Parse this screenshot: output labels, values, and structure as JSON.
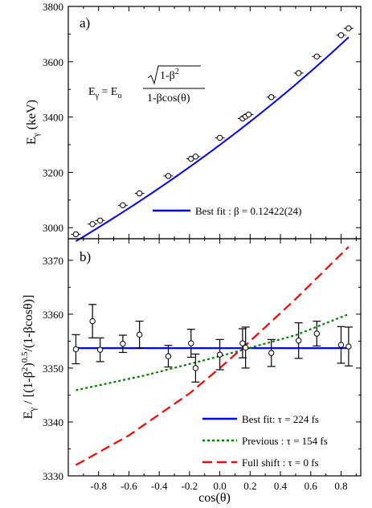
{
  "chart_data": [
    {
      "panel_label": "a)",
      "type": "scatter",
      "ylabel_main": "E",
      "ylabel_sub": "γ",
      "ylabel_rest": " (keV)",
      "ylim": [
        2960,
        3800
      ],
      "yticks": [
        3000,
        3200,
        3400,
        3600,
        3800
      ],
      "xlim": [
        -1.0,
        0.93
      ],
      "equation": {
        "lhs_main": "E",
        "lhs_sub": "γ",
        "rhs_main": " = E",
        "rhs_sub": "o",
        "numerator": "1-β",
        "numerator_sup": "2",
        "denominator": "1-βcos(θ)"
      },
      "fit": {
        "beta": 0.12422,
        "E0": 3325.0
      },
      "legend": [
        {
          "label": "Best fit : β = 0.12422(24)",
          "color": "#0000ff",
          "style": "solid"
        }
      ],
      "points_x": [
        -0.95,
        -0.84,
        -0.79,
        -0.64,
        -0.53,
        -0.34,
        -0.19,
        -0.16,
        0.0,
        0.15,
        0.17,
        0.19,
        0.34,
        0.52,
        0.64,
        0.8,
        0.85
      ],
      "points_y": [
        2976,
        3013,
        3026,
        3081,
        3124,
        3187,
        3249,
        3257,
        3325,
        3395,
        3402,
        3409,
        3472,
        3559,
        3619,
        3696,
        3721
      ]
    },
    {
      "panel_label": "b)",
      "type": "scatter",
      "xlabel": "cos(θ)",
      "ylabel_main": "E",
      "ylabel_sub": "γ",
      "ylabel_rest": " / [(1-β",
      "ylabel_sup": "2",
      "ylabel_sup2": ")",
      "ylabel_sup3": "0.5",
      "ylabel_tail": "/(1-βcosθ)]",
      "ylim": [
        3330,
        3374
      ],
      "yticks": [
        3330,
        3340,
        3350,
        3360,
        3370
      ],
      "xlim": [
        -1.0,
        0.93
      ],
      "xticks": [
        -0.8,
        -0.6,
        -0.4,
        -0.2,
        0.0,
        0.2,
        0.4,
        0.6,
        0.8
      ],
      "xtick_labels": [
        "-0.8",
        "-0.6",
        "-0.4",
        "-0.2",
        "0.0",
        "0.2",
        "0.4",
        "0.6",
        "0.8"
      ],
      "points_x": [
        -0.95,
        -0.84,
        -0.79,
        -0.64,
        -0.53,
        -0.34,
        -0.19,
        -0.16,
        0.0,
        0.15,
        0.17,
        0.34,
        0.52,
        0.64,
        0.8,
        0.85
      ],
      "points_y": [
        3353.5,
        3358.7,
        3353.4,
        3354.5,
        3356.2,
        3352.2,
        3354.6,
        3350.0,
        3352.5,
        3354.6,
        3353.8,
        3352.8,
        3355.1,
        3356.4,
        3354.3,
        3354.0
      ],
      "points_err": [
        2.7,
        3.1,
        2.2,
        1.6,
        2.5,
        2.0,
        2.6,
        2.6,
        2.8,
        2.7,
        3.8,
        2.5,
        3.3,
        2.3,
        3.4,
        3.6
      ],
      "series": [
        {
          "name": "Best fit: τ = 224 fs",
          "color": "#0000ff",
          "style": "solid",
          "x": [
            -0.95,
            0.85
          ],
          "y": [
            3353.7,
            3353.7
          ]
        },
        {
          "name": "Previous : τ = 154 fs",
          "color": "#008000",
          "style": "dotted",
          "x": [
            -0.95,
            -0.5,
            0.0,
            0.5,
            0.85
          ],
          "y": [
            3345.9,
            3348.6,
            3352.2,
            3356.1,
            3360.0
          ]
        },
        {
          "name": "Full shift : τ = 0 fs",
          "color": "#ff0000",
          "style": "dashed",
          "x": [
            -0.95,
            -0.6,
            -0.2,
            0.0,
            0.2,
            0.5,
            0.85
          ],
          "y": [
            3332.0,
            3337.5,
            3345.3,
            3350.0,
            3355.0,
            3362.8,
            3372.5
          ]
        }
      ]
    }
  ]
}
